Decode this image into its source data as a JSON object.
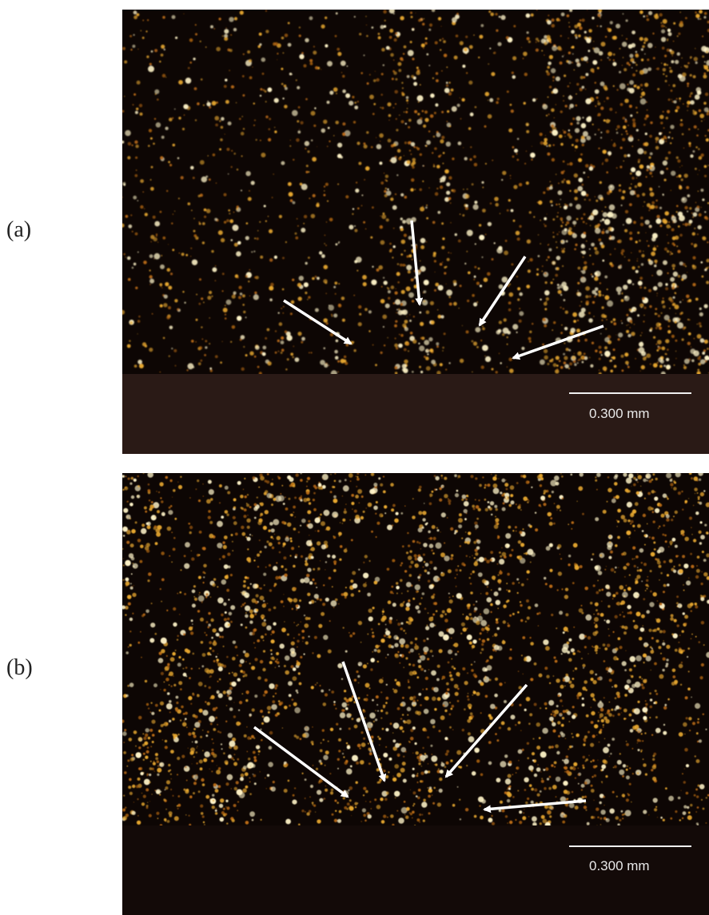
{
  "figure": {
    "panels": [
      {
        "label": "(a)",
        "scale_bar": "0.300 mm",
        "arrow_count": 4,
        "description": "particles"
      },
      {
        "label": "(b)",
        "scale_bar": "0.300 mm",
        "arrow_count": 4,
        "description": "particles"
      }
    ],
    "colors": {
      "background_dark": "#0d0604",
      "particle_bright": "#fff4c8",
      "particle_gold": "#e8a830",
      "particle_orange": "#b86a14",
      "base_region": "#2a1a16",
      "arrow": "#ffffff"
    }
  }
}
